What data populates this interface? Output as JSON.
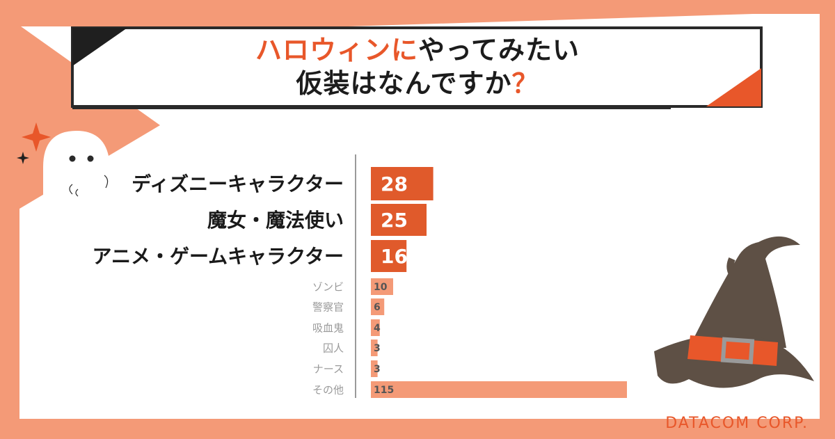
{
  "title": {
    "line1_accent": "ハロウィンに",
    "line1_rest": "やってみたい",
    "line2_main": "仮装はなんですか",
    "line2_accent": "？"
  },
  "brand": "DATACOM CORP.",
  "colors": {
    "background": "#f49a77",
    "highlight_bar": "#e05a2b",
    "minor_bar": "#f49a77",
    "accent": "#e8572a"
  },
  "decorations": [
    "ghost-icon",
    "sparkle-icon",
    "witch-hat-icon"
  ],
  "chart_data": {
    "type": "bar",
    "orientation": "horizontal",
    "categories": [
      "ディズニーキャラクター",
      "魔女・魔法使い",
      "アニメ・ゲームキャラクター",
      "ゾンビ",
      "警察官",
      "吸血鬼",
      "囚人",
      "ナース",
      "その他"
    ],
    "values": [
      28,
      25,
      16,
      10,
      6,
      4,
      3,
      3,
      115
    ],
    "highlighted": [
      true,
      true,
      true,
      false,
      false,
      false,
      false,
      false,
      false
    ],
    "data_labels": true
  }
}
